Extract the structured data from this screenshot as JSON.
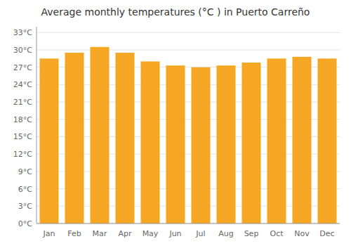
{
  "chart_data": {
    "type": "bar",
    "title": "Average monthly temperatures (°C ) in Puerto Carreño",
    "categories": [
      "Jan",
      "Feb",
      "Mar",
      "Apr",
      "May",
      "Jun",
      "Jul",
      "Aug",
      "Sep",
      "Oct",
      "Nov",
      "Dec"
    ],
    "values": [
      28.5,
      29.5,
      30.5,
      29.5,
      28.0,
      27.3,
      27.0,
      27.3,
      27.8,
      28.5,
      28.8,
      28.5
    ],
    "color": "#F5A623",
    "ylim": [
      0,
      34
    ],
    "yticks": [
      {
        "value": 0,
        "label": "0°C"
      },
      {
        "value": 3,
        "label": "3°C"
      },
      {
        "value": 6,
        "label": "6°C"
      },
      {
        "value": 9,
        "label": "9°C"
      },
      {
        "value": 12,
        "label": "12°C"
      },
      {
        "value": 15,
        "label": "15°C"
      },
      {
        "value": 18,
        "label": "18°C"
      },
      {
        "value": 21,
        "label": "21°C"
      },
      {
        "value": 24,
        "label": "24°C"
      },
      {
        "value": 27,
        "label": "27°C"
      },
      {
        "value": 30,
        "label": "30°C"
      },
      {
        "value": 33,
        "label": "33°C"
      }
    ],
    "grid": true
  }
}
